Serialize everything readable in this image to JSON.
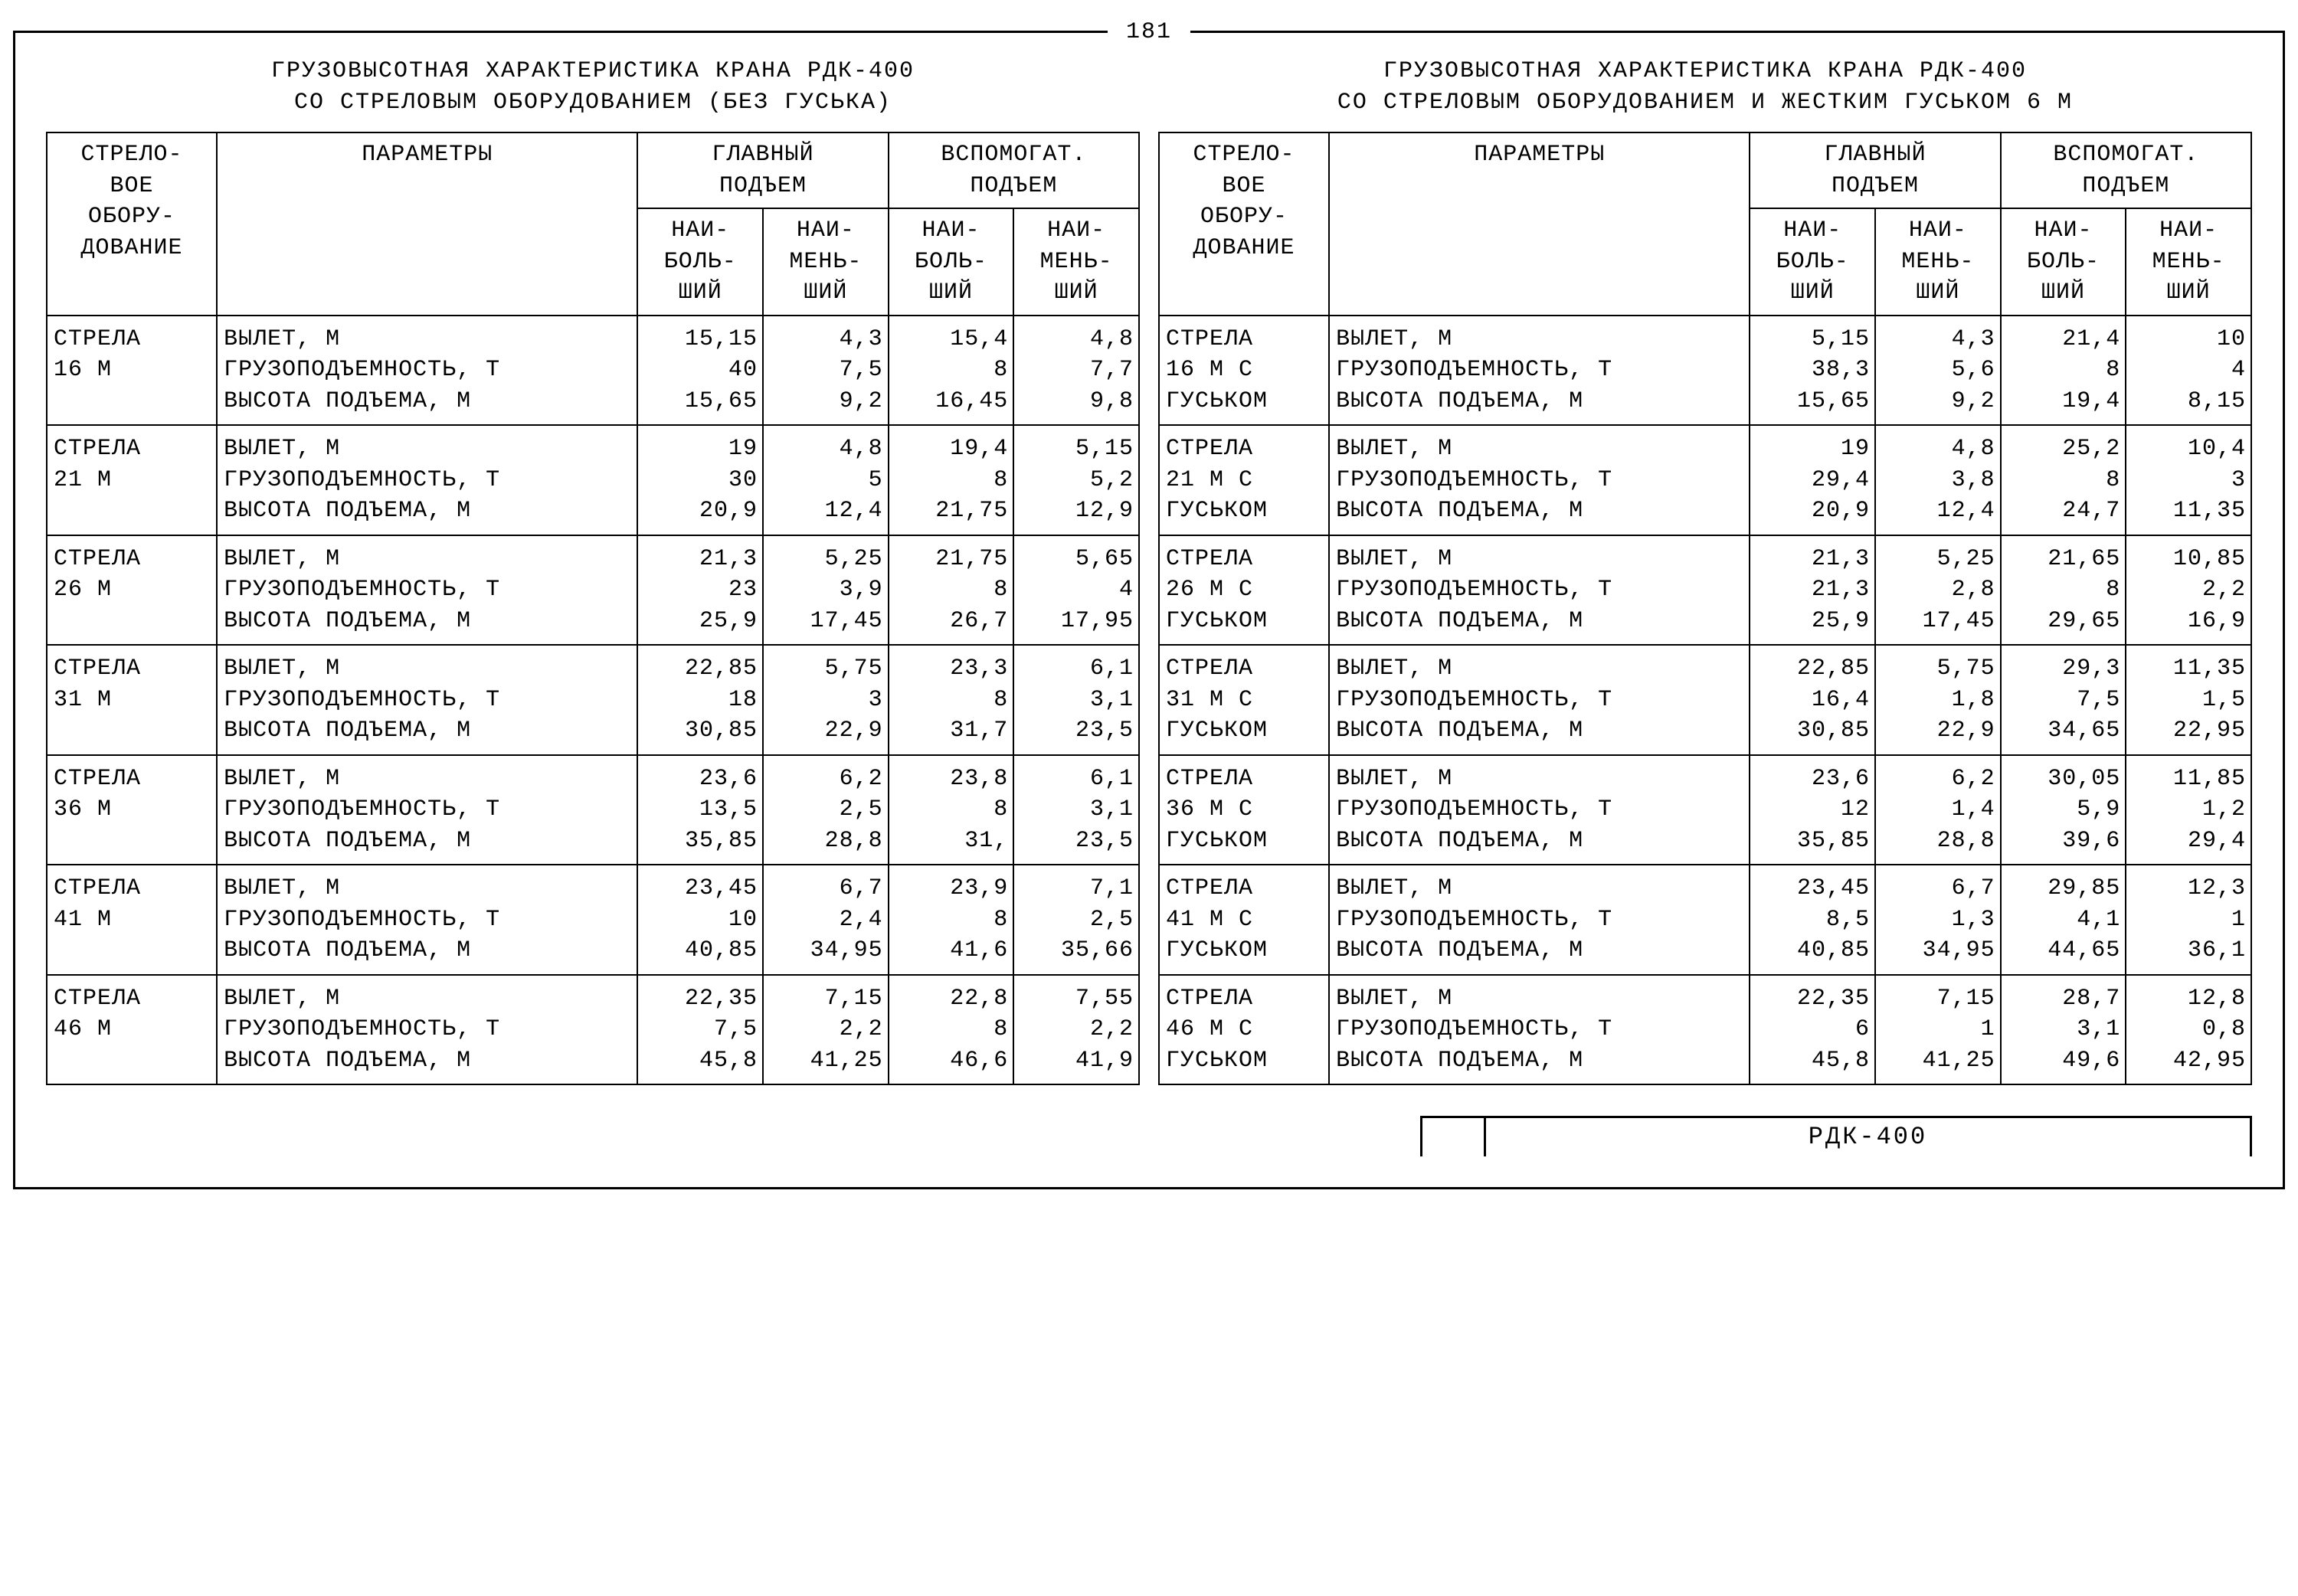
{
  "page_number": "181",
  "footer_label": "РДК-400",
  "param_rows_label": "ВЫЛЕТ, М\nГРУЗОПОДЪЕМНОСТЬ, Т\nВЫСОТА ПОДЪЕМА, М",
  "headers": {
    "equip": "СТРЕЛО-\nВОЕ\nОБОРУ-\nДОВАНИЕ",
    "params": "ПАРАМЕТРЫ",
    "main_lift": "ГЛАВНЫЙ\nПОДЪЕМ",
    "aux_lift": "ВСПОМОГАТ.\nПОДЪЕМ",
    "max": "НАИ-\nБОЛЬ-\nШИЙ",
    "min": "НАИ-\nМЕНЬ-\nШИЙ"
  },
  "left_table": {
    "title": "ГРУЗОВЫСОТНАЯ ХАРАКТЕРИСТИКА КРАНА РДК-400\nСО СТРЕЛОВЫМ ОБОРУДОВАНИЕМ (БЕЗ ГУСЬКА)",
    "rows": [
      {
        "equip": "СТРЕЛА\n16 М",
        "main_max": "15,15\n40\n15,65",
        "main_min": "4,3\n7,5\n9,2",
        "aux_max": "15,4\n8\n16,45",
        "aux_min": "4,8\n7,7\n9,8"
      },
      {
        "equip": "СТРЕЛА\n21 М",
        "main_max": "19\n30\n20,9",
        "main_min": "4,8\n5\n12,4",
        "aux_max": "19,4\n8\n21,75",
        "aux_min": "5,15\n5,2\n12,9"
      },
      {
        "equip": "СТРЕЛА\n26 М",
        "main_max": "21,3\n23\n25,9",
        "main_min": "5,25\n3,9\n17,45",
        "aux_max": "21,75\n8\n26,7",
        "aux_min": "5,65\n4\n17,95"
      },
      {
        "equip": "СТРЕЛА\n31 М",
        "main_max": "22,85\n18\n30,85",
        "main_min": "5,75\n3\n22,9",
        "aux_max": "23,3\n8\n31,7",
        "aux_min": "6,1\n3,1\n23,5"
      },
      {
        "equip": "СТРЕЛА\n36 М",
        "main_max": "23,6\n13,5\n35,85",
        "main_min": "6,2\n2,5\n28,8",
        "aux_max": "23,8\n8\n31,",
        "aux_min": "6,1\n3,1\n23,5"
      },
      {
        "equip": "СТРЕЛА\n41 М",
        "main_max": "23,45\n10\n40,85",
        "main_min": "6,7\n2,4\n34,95",
        "aux_max": "23,9\n8\n41,6",
        "aux_min": "7,1\n2,5\n35,66"
      },
      {
        "equip": "СТРЕЛА\n46 М",
        "main_max": "22,35\n7,5\n45,8",
        "main_min": "7,15\n2,2\n41,25",
        "aux_max": "22,8\n8\n46,6",
        "aux_min": "7,55\n2,2\n41,9"
      }
    ]
  },
  "right_table": {
    "title": "ГРУЗОВЫСОТНАЯ ХАРАКТЕРИСТИКА КРАНА РДК-400\nСО СТРЕЛОВЫМ ОБОРУДОВАНИЕМ И ЖЕСТКИМ ГУСЬКОМ 6 М",
    "rows": [
      {
        "equip": "СТРЕЛА\n16 М С\nГУСЬКОМ",
        "main_max": "5,15\n38,3\n15,65",
        "main_min": "4,3\n5,6\n9,2",
        "aux_max": "21,4\n8\n19,4",
        "aux_min": "10\n4\n8,15"
      },
      {
        "equip": "СТРЕЛА\n21 М С\nГУСЬКОМ",
        "main_max": "19\n29,4\n20,9",
        "main_min": "4,8\n3,8\n12,4",
        "aux_max": "25,2\n8\n24,7",
        "aux_min": "10,4\n3\n11,35"
      },
      {
        "equip": "СТРЕЛА\n26 М С\nГУСЬКОМ",
        "main_max": "21,3\n21,3\n25,9",
        "main_min": "5,25\n2,8\n17,45",
        "aux_max": "21,65\n8\n29,65",
        "aux_min": "10,85\n2,2\n16,9"
      },
      {
        "equip": "СТРЕЛА\n31 М С\nГУСЬКОМ",
        "main_max": "22,85\n16,4\n30,85",
        "main_min": "5,75\n1,8\n22,9",
        "aux_max": "29,3\n7,5\n34,65",
        "aux_min": "11,35\n1,5\n22,95"
      },
      {
        "equip": "СТРЕЛА\n36 М С\nГУСЬКОМ",
        "main_max": "23,6\n12\n35,85",
        "main_min": "6,2\n1,4\n28,8",
        "aux_max": "30,05\n5,9\n39,6",
        "aux_min": "11,85\n1,2\n29,4"
      },
      {
        "equip": "СТРЕЛА\n41 М С\nГУСЬКОМ",
        "main_max": "23,45\n8,5\n40,85",
        "main_min": "6,7\n1,3\n34,95",
        "aux_max": "29,85\n4,1\n44,65",
        "aux_min": "12,3\n1\n36,1"
      },
      {
        "equip": "СТРЕЛА\n46 М С\nГУСЬКОМ",
        "main_max": "22,35\n6\n45,8",
        "main_min": "7,15\n1\n41,25",
        "aux_max": "28,7\n3,1\n49,6",
        "aux_min": "12,8\n0,8\n42,95"
      }
    ]
  }
}
